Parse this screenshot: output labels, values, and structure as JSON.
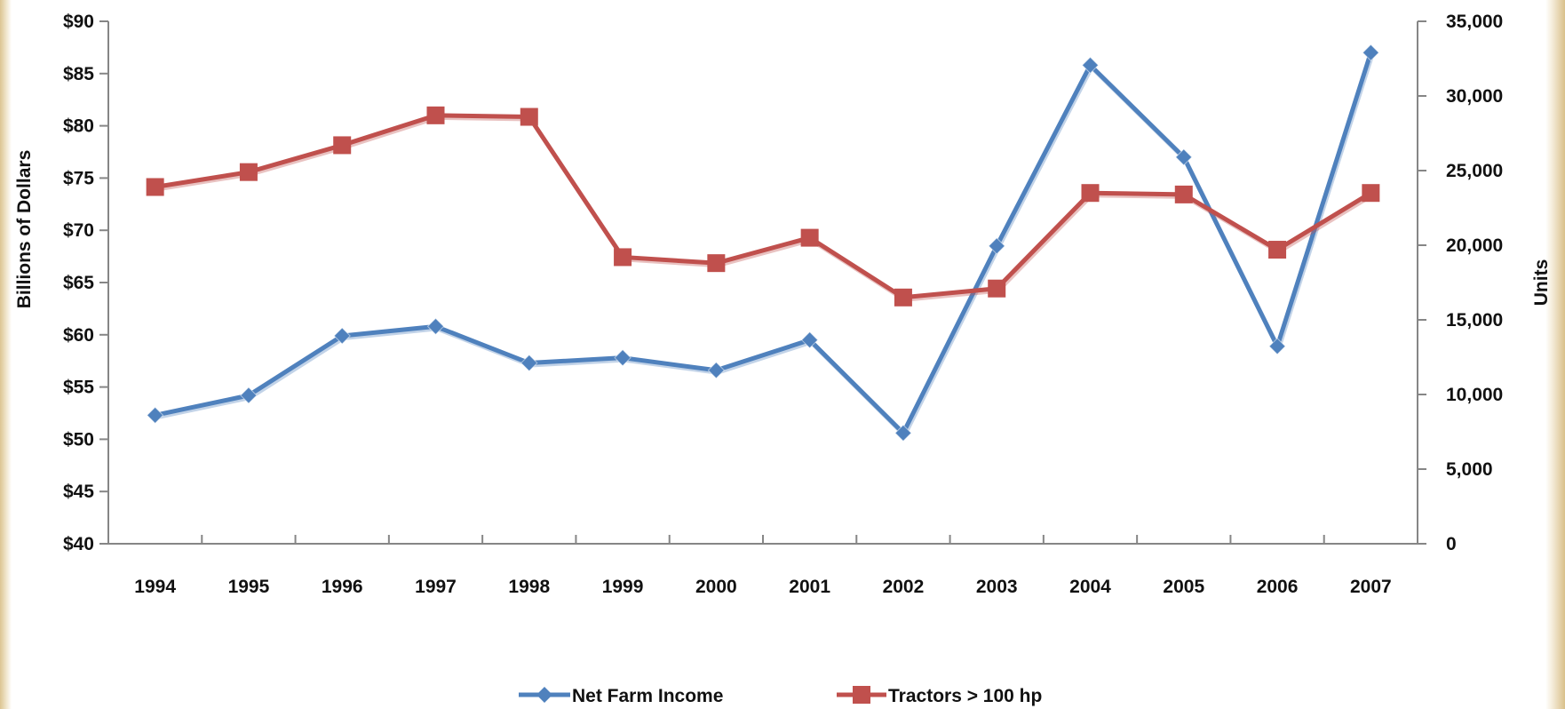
{
  "chart_data": {
    "type": "line",
    "categories": [
      "1994",
      "1995",
      "1996",
      "1997",
      "1998",
      "1999",
      "2000",
      "2001",
      "2002",
      "2003",
      "2004",
      "2005",
      "2006",
      "2007"
    ],
    "series": [
      {
        "name": "Net Farm Income",
        "axis": "left",
        "marker": "diamond",
        "color": "#4f81bd",
        "values": [
          52.3,
          54.2,
          59.9,
          60.8,
          57.3,
          57.8,
          56.6,
          59.5,
          50.6,
          68.5,
          85.8,
          77.0,
          58.9,
          87.0
        ]
      },
      {
        "name": "Tractors > 100 hp",
        "axis": "right",
        "marker": "square",
        "color": "#c0504d",
        "values": [
          23900,
          24900,
          26700,
          28700,
          28600,
          19200,
          18800,
          20500,
          16500,
          17100,
          23500,
          23400,
          19700,
          23500
        ]
      }
    ],
    "y_left": {
      "label": "Billions of Dollars",
      "range": [
        40,
        90
      ],
      "ticks": [
        "$90",
        "$85",
        "$80",
        "$75",
        "$70",
        "$65",
        "$60",
        "$55",
        "$50",
        "$45",
        "$40"
      ]
    },
    "y_right": {
      "label": "Units",
      "range": [
        0,
        35000
      ],
      "ticks": [
        "35,000",
        "30,000",
        "25,000",
        "20,000",
        "15,000",
        "10,000",
        "5,000",
        "0"
      ]
    },
    "grid": false,
    "legend_position": "bottom"
  }
}
